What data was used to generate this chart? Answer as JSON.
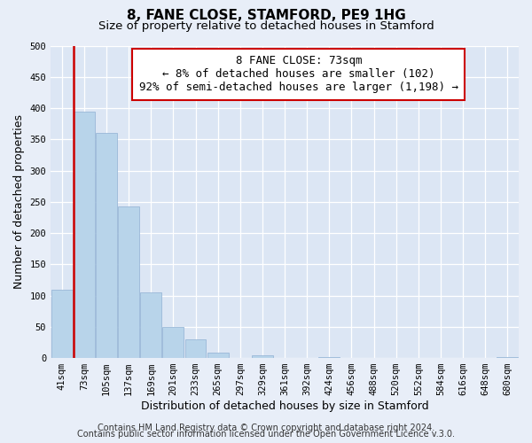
{
  "title": "8, FANE CLOSE, STAMFORD, PE9 1HG",
  "subtitle": "Size of property relative to detached houses in Stamford",
  "xlabel": "Distribution of detached houses by size in Stamford",
  "ylabel": "Number of detached properties",
  "bar_labels": [
    "41sqm",
    "73sqm",
    "105sqm",
    "137sqm",
    "169sqm",
    "201sqm",
    "233sqm",
    "265sqm",
    "297sqm",
    "329sqm",
    "361sqm",
    "392sqm",
    "424sqm",
    "456sqm",
    "488sqm",
    "520sqm",
    "552sqm",
    "584sqm",
    "616sqm",
    "648sqm",
    "680sqm"
  ],
  "bar_values": [
    110,
    395,
    360,
    243,
    105,
    50,
    30,
    8,
    0,
    5,
    0,
    0,
    2,
    0,
    0,
    0,
    0,
    0,
    0,
    0,
    2
  ],
  "bar_color": "#b8d4ea",
  "highlight_bar_index": 1,
  "highlight_color": "#cc0000",
  "annotation_title": "8 FANE CLOSE: 73sqm",
  "annotation_line1": "← 8% of detached houses are smaller (102)",
  "annotation_line2": "92% of semi-detached houses are larger (1,198) →",
  "annotation_box_facecolor": "#ffffff",
  "annotation_box_edgecolor": "#cc0000",
  "ylim": [
    0,
    500
  ],
  "yticks": [
    0,
    50,
    100,
    150,
    200,
    250,
    300,
    350,
    400,
    450,
    500
  ],
  "footer_line1": "Contains HM Land Registry data © Crown copyright and database right 2024.",
  "footer_line2": "Contains public sector information licensed under the Open Government Licence v.3.0.",
  "bg_color": "#e8eef8",
  "plot_bg_color": "#dce6f4",
  "grid_color": "#ffffff",
  "title_fontsize": 11,
  "subtitle_fontsize": 9.5,
  "axis_label_fontsize": 9,
  "tick_fontsize": 7.5,
  "annotation_fontsize": 9,
  "footer_fontsize": 7
}
